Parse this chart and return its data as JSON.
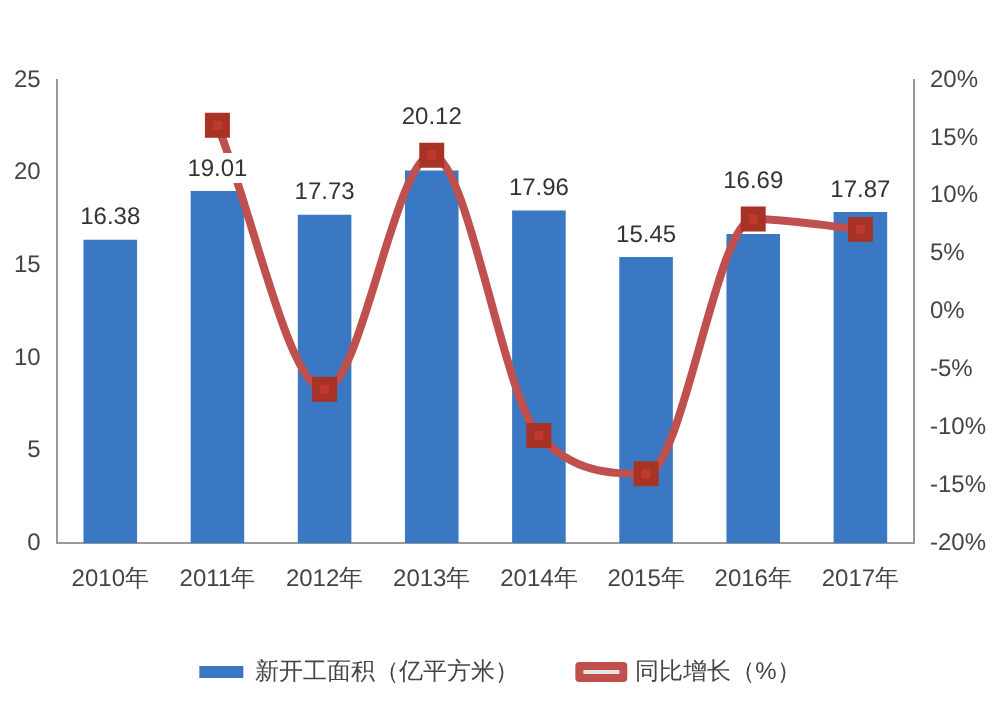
{
  "chart_data": {
    "type": "bar",
    "categories": [
      "2010年",
      "2011年",
      "2012年",
      "2013年",
      "2014年",
      "2015年",
      "2016年",
      "2017年"
    ],
    "series": [
      {
        "name": "新开工面积（亿平方米）",
        "color": "#3a78c3",
        "values": [
          16.38,
          19.01,
          17.73,
          20.12,
          17.96,
          15.45,
          16.69,
          17.87
        ],
        "value_labels": [
          "16.38",
          "19.01",
          "17.73",
          "20.12",
          "17.96",
          "15.45",
          "16.69",
          "17.87"
        ]
      },
      {
        "name": "同比增长（%）",
        "type": "line",
        "axis": "y2",
        "color": "#c0504d",
        "values": [
          null,
          16.1,
          -6.7,
          13.5,
          -10.7,
          -14.0,
          8.0,
          7.1
        ]
      }
    ],
    "ylim": [
      0,
      25
    ],
    "yticks": [
      0,
      5,
      10,
      15,
      20,
      25
    ],
    "y2lim": [
      -20,
      20
    ],
    "y2ticks": [
      {
        "value": -20,
        "label": "-20%"
      },
      {
        "value": -15,
        "label": "-15%"
      },
      {
        "value": -10,
        "label": "-10%"
      },
      {
        "value": -5,
        "label": "-5%"
      },
      {
        "value": 0,
        "label": "0%"
      },
      {
        "value": 5,
        "label": "5%"
      },
      {
        "value": 10,
        "label": "10%"
      },
      {
        "value": 15,
        "label": "15%"
      },
      {
        "value": 20,
        "label": "20%"
      }
    ],
    "grid": false,
    "legend": "bottom",
    "marker": "square",
    "line_style": "solid"
  }
}
